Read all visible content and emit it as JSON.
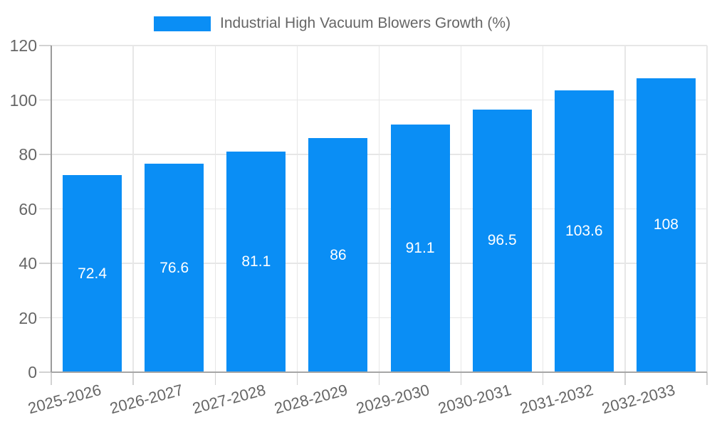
{
  "legend": {
    "label": "Industrial High Vacuum Blowers Growth (%)"
  },
  "chart_data": {
    "type": "bar",
    "title": "Industrial High Vacuum Blowers Growth (%)",
    "categories": [
      "2025-2026",
      "2026-2027",
      "2027-2028",
      "2028-2029",
      "2029-2030",
      "2030-2031",
      "2031-2032",
      "2032-2033"
    ],
    "values": [
      72.4,
      76.6,
      81.1,
      86,
      91.1,
      96.5,
      103.6,
      108
    ],
    "value_labels": [
      "72.4",
      "76.6",
      "81.1",
      "86",
      "91.1",
      "96.5",
      "103.6",
      "108"
    ],
    "xlabel": "",
    "ylabel": "",
    "ylim": [
      0,
      120
    ],
    "yticks": [
      0,
      20,
      40,
      60,
      80,
      100,
      120
    ],
    "grid": true,
    "legend_position": "top",
    "x_label_rotation_deg": -15,
    "colors": {
      "bar": "#0a8ef5",
      "bar_value_label": "#ffffff",
      "axis_text": "#666666",
      "gridline": "#e7e7e7",
      "axis_line": "#9b9b9b",
      "background": "#ffffff"
    }
  }
}
